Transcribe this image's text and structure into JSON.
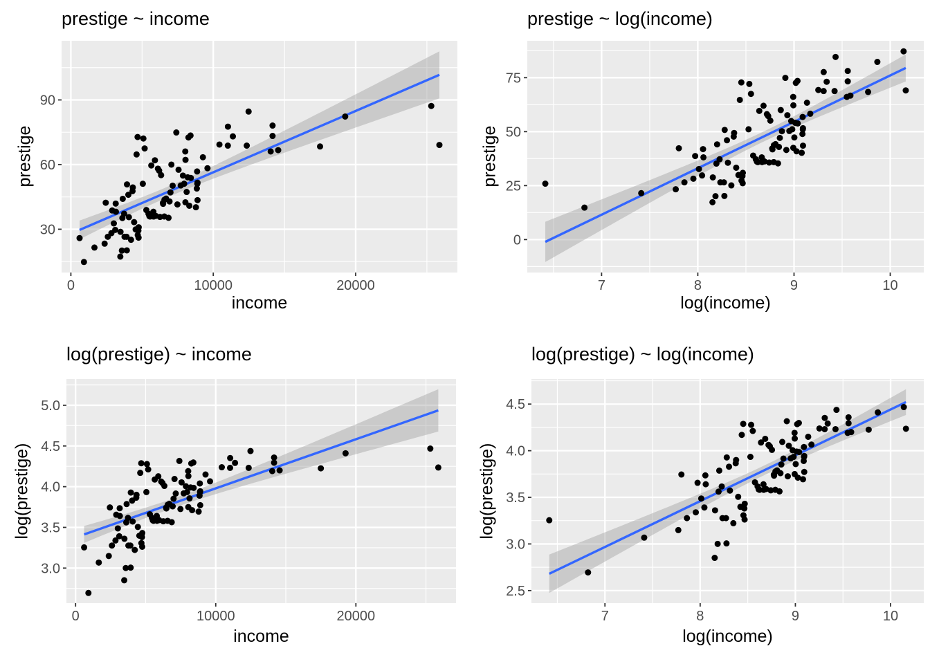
{
  "chart_data": {
    "type": "scatter",
    "description": "2x2 grid of scatterplots of the occupational Prestige data, each with a linear regression line and 95% confidence ribbon (ggplot2 style).",
    "style": {
      "panel_background": "#EBEBEB",
      "grid_color": "#FFFFFF",
      "point_color": "#000000",
      "smooth_line_color": "#3366FF",
      "ribbon_fill": "#999999",
      "ribbon_opacity": 0.4,
      "tick_mark_color": "#333333",
      "tick_label_color": "#4D4D4D",
      "title_color": "#000000"
    },
    "smooth": {
      "method": "lm",
      "ci_level": 0.95
    },
    "dataset": {
      "x_name": "income",
      "y_name": "prestige",
      "income": [
        12351,
        25879,
        9271,
        8865,
        8403,
        11030,
        8258,
        14163,
        11377,
        11023,
        5902,
        7059,
        8425,
        8049,
        7405,
        6336,
        19263,
        6112,
        9593,
        4686,
        12480,
        5648,
        8034,
        25308,
        14558,
        17498,
        14163,
        10432,
        5092,
        4614,
        5180,
        6197,
        7562,
        8206,
        4036,
        3148,
        4348,
        2448,
        4330,
        4761,
        3016,
        2901,
        5511,
        3739,
        3161,
        4741,
        5052,
        6259,
        4075,
        7482,
        8780,
        2594,
        918,
        2370,
        8131,
        6992,
        7956,
        8895,
        8891,
        3116,
        3930,
        7869,
        611,
        3769,
        3472,
        3582,
        2847,
        4443,
        3485,
        8043,
        6686,
        6565,
        6477,
        5811,
        6573,
        3942,
        5449,
        5795,
        7716,
        4696,
        8316,
        7147,
        8880,
        5299,
        5959,
        4549,
        6928,
        3910,
        14032,
        8845,
        5562,
        4224,
        4753,
        6462,
        3617,
        6860,
        3643,
        1656
      ],
      "prestige": [
        68.8,
        69.1,
        63.4,
        56.8,
        73.5,
        77.6,
        72.6,
        78.1,
        73.1,
        68.8,
        62.0,
        60.0,
        53.8,
        62.2,
        74.9,
        55.1,
        82.3,
        58.1,
        58.3,
        72.8,
        84.6,
        59.6,
        66.1,
        87.2,
        66.7,
        68.4,
        73.3,
        69.3,
        72.1,
        64.7,
        67.5,
        57.2,
        57.6,
        54.1,
        46.0,
        41.9,
        49.4,
        42.3,
        47.7,
        30.9,
        32.7,
        38.7,
        36.1,
        37.2,
        38.1,
        29.4,
        51.1,
        35.7,
        35.6,
        41.5,
        40.2,
        26.5,
        14.8,
        23.3,
        47.3,
        47.1,
        51.1,
        43.5,
        51.6,
        29.7,
        20.2,
        54.9,
        25.9,
        26.5,
        17.3,
        20.1,
        28.2,
        33.3,
        28.8,
        42.5,
        44.2,
        35.9,
        41.8,
        35.9,
        43.7,
        50.8,
        37.2,
        38.1,
        50.3,
        27.3,
        40.9,
        50.2,
        51.1,
        38.9,
        36.2,
        29.9,
        42.9,
        26.5,
        66.1,
        48.9,
        35.9,
        25.1,
        26.1,
        42.2,
        35.2,
        35.3,
        44.1,
        21.5
      ]
    },
    "panels": [
      {
        "title": "prestige ~ income",
        "xlabel": "income",
        "ylabel": "prestige",
        "x_transform": "identity",
        "y_transform": "identity",
        "x_ticks": [
          0,
          10000,
          20000
        ],
        "x_tick_labels": [
          "0",
          "10000",
          "20000"
        ],
        "y_ticks": [
          30,
          60,
          90
        ],
        "y_tick_labels": [
          "30",
          "60",
          "90"
        ]
      },
      {
        "title": "prestige ~ log(income)",
        "xlabel": "log(income)",
        "ylabel": "prestige",
        "x_transform": "log",
        "y_transform": "identity",
        "x_ticks": [
          7,
          8,
          9,
          10
        ],
        "x_tick_labels": [
          "7",
          "8",
          "9",
          "10"
        ],
        "y_ticks": [
          0,
          25,
          50,
          75
        ],
        "y_tick_labels": [
          "0",
          "25",
          "50",
          "75"
        ]
      },
      {
        "title": "log(prestige) ~ income",
        "xlabel": "income",
        "ylabel": "log(prestige)",
        "x_transform": "identity",
        "y_transform": "log",
        "x_ticks": [
          0,
          10000,
          20000
        ],
        "x_tick_labels": [
          "0",
          "10000",
          "20000"
        ],
        "y_ticks": [
          3.0,
          3.5,
          4.0,
          4.5,
          5.0
        ],
        "y_tick_labels": [
          "3.0",
          "3.5",
          "4.0",
          "4.5",
          "5.0"
        ]
      },
      {
        "title": "log(prestige) ~ log(income)",
        "xlabel": "log(income)",
        "ylabel": "log(prestige)",
        "x_transform": "log",
        "y_transform": "log",
        "x_ticks": [
          7,
          8,
          9,
          10
        ],
        "x_tick_labels": [
          "7",
          "8",
          "9",
          "10"
        ],
        "y_ticks": [
          2.5,
          3.0,
          3.5,
          4.0,
          4.5
        ],
        "y_tick_labels": [
          "2.5",
          "3.0",
          "3.5",
          "4.0",
          "4.5"
        ]
      }
    ]
  }
}
